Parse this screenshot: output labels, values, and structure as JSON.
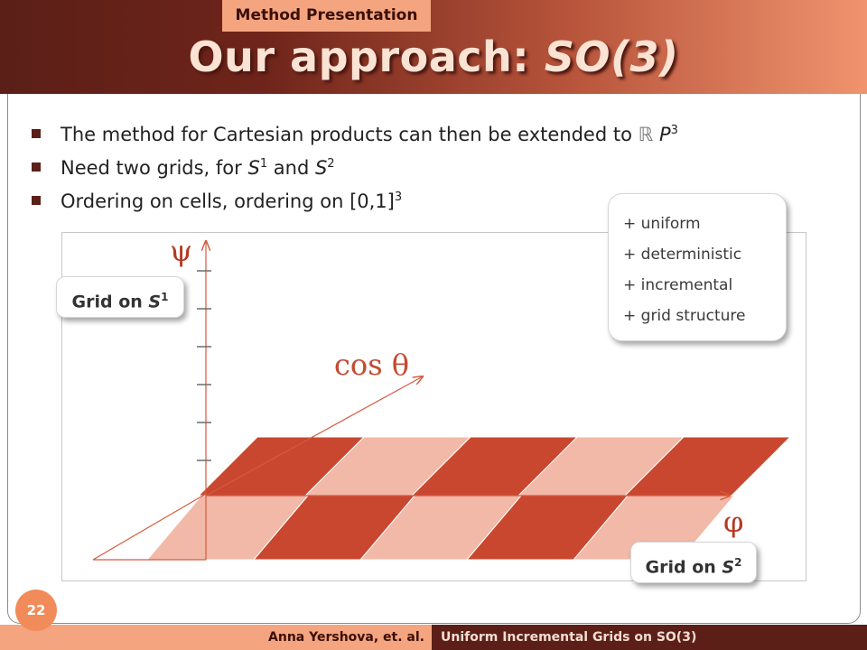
{
  "header": {
    "section_label": "Method Presentation",
    "title_prefix": "Our approach: ",
    "title_emph": "SO(3)"
  },
  "bullets": [
    {
      "text": "The method for Cartesian products can then be extended to ",
      "math": "ℝ",
      "math2": "P",
      "sup": "3"
    },
    {
      "text_a": "Need two grids, for ",
      "s1": "S",
      "s1_sup": "1",
      "and": " and ",
      "s2": "S",
      "s2_sup": "2"
    },
    {
      "text": "Ordering on cells, ordering on [0,1]",
      "sup": "3"
    }
  ],
  "diagram": {
    "axis_psi": "ψ",
    "axis_cos": "cos θ",
    "axis_phi": "φ",
    "colors": {
      "dark": "#c9472f",
      "light": "#f2b8a8",
      "axis": "#d65a3e",
      "tick": "#6b6b6b",
      "psi": "#b53a22"
    }
  },
  "callouts": {
    "grid_s1": {
      "text": "Grid on ",
      "sym": "S",
      "sup": "1"
    },
    "grid_s2": {
      "text": "Grid on ",
      "sym": "S",
      "sup": "2"
    },
    "properties": [
      "+ uniform",
      "+ deterministic",
      "+ incremental",
      "+ grid structure"
    ]
  },
  "footer": {
    "authors": "Anna Yershova, et. al.",
    "talk_title": "Uniform Incremental Grids on SO(3)",
    "page_number": "22"
  }
}
